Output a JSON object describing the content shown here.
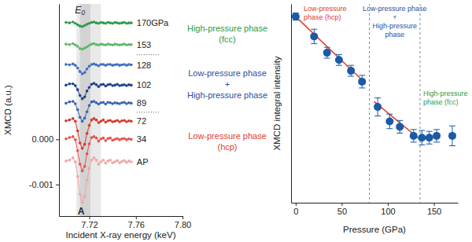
{
  "chart_data": [
    {
      "type": "line",
      "xlabel": "Incident X-ray energy (keV)",
      "ylabel": "XMCD (a.u.)",
      "x": [
        7.7,
        7.703,
        7.706,
        7.708,
        7.71,
        7.712,
        7.714,
        7.716,
        7.718,
        7.72,
        7.722,
        7.724,
        7.726,
        7.728,
        7.73,
        7.732,
        7.734,
        7.736,
        7.738,
        7.74,
        7.742,
        7.744,
        7.746,
        7.748,
        7.75,
        7.752,
        7.754,
        7.756
      ],
      "series": [
        {
          "name": "170GPa",
          "color": "#2e9a48",
          "values": [
            0.00259,
            0.00258,
            0.0026,
            0.00257,
            0.00254,
            0.00251,
            0.0025,
            0.00252,
            0.00255,
            0.00257,
            0.00259,
            0.0026,
            0.00258,
            0.00257,
            0.00259,
            0.00258,
            0.00257,
            0.00259,
            0.00258,
            0.00257,
            0.00259,
            0.00258,
            0.00257,
            0.00258,
            0.00259,
            0.00257,
            0.00258,
            0.00258
          ]
        },
        {
          "name": "153",
          "color": "#5cb868",
          "values": [
            0.00211,
            0.0021,
            0.00212,
            0.00209,
            0.00206,
            0.00201,
            0.002,
            0.00202,
            0.00205,
            0.00208,
            0.00211,
            0.00212,
            0.0021,
            0.00209,
            0.00211,
            0.0021,
            0.00209,
            0.00211,
            0.0021,
            0.00209,
            0.00211,
            0.0021,
            0.00209,
            0.0021,
            0.00211,
            0.00209,
            0.0021,
            0.0021
          ]
        },
        {
          "name": "128",
          "color": "#3f6fc0",
          "values": [
            0.00166,
            0.00165,
            0.00167,
            0.00164,
            0.00158,
            0.0015,
            0.00145,
            0.00148,
            0.00156,
            0.00162,
            0.00166,
            0.00167,
            0.00165,
            0.00163,
            0.00166,
            0.00166,
            0.00164,
            0.00166,
            0.00166,
            0.00164,
            0.00165,
            0.00166,
            0.00164,
            0.00165,
            0.00166,
            0.00164,
            0.00166,
            0.00165
          ]
        },
        {
          "name": "102",
          "color": "#1f3f8f",
          "values": [
            0.0012,
            0.00123,
            0.00123,
            0.00119,
            0.0011,
            0.00097,
            0.0009,
            0.00094,
            0.00107,
            0.00115,
            0.00122,
            0.00124,
            0.00121,
            0.00117,
            0.00121,
            0.00122,
            0.00118,
            0.00121,
            0.00122,
            0.00119,
            0.0012,
            0.00122,
            0.00119,
            0.0012,
            0.00121,
            0.00119,
            0.00121,
            0.0012
          ]
        },
        {
          "name": "89",
          "color": "#3b62b5",
          "values": [
            0.0008,
            0.00083,
            0.00084,
            0.00079,
            0.00066,
            0.00049,
            0.0004,
            0.00047,
            0.00061,
            0.00075,
            0.00083,
            0.00084,
            0.00081,
            0.00078,
            0.00081,
            0.00082,
            0.00078,
            0.00082,
            0.00081,
            0.00079,
            0.00081,
            0.0008,
            0.00079,
            0.00081,
            0.00082,
            0.00079,
            0.00081,
            0.0008
          ]
        },
        {
          "name": "72",
          "color": "#d9382e",
          "values": [
            0.00041,
            0.00043,
            0.00046,
            0.0004,
            0.00019,
            -8e-05,
            -0.0002,
            -0.00011,
            0.00013,
            0.00031,
            0.00043,
            0.00046,
            0.00043,
            0.00037,
            0.0004,
            0.00043,
            0.00038,
            0.00041,
            0.00042,
            0.00039,
            0.0004,
            0.00042,
            0.00039,
            0.00041,
            0.00042,
            0.00039,
            0.00041,
            0.0004
          ]
        },
        {
          "name": "34",
          "color": "#e8504a",
          "values": [
            1e-05,
            4e-05,
            6e-05,
            -1e-05,
            -0.00025,
            -0.00055,
            -0.0007,
            -0.0006,
            -0.00032,
            -0.0001,
            4e-05,
            6e-05,
            3e-05,
            -4e-05,
            1e-05,
            3e-05,
            -3e-05,
            2e-05,
            3e-05,
            -2e-05,
            0,
            2e-05,
            -1e-05,
            1e-05,
            2e-05,
            -1e-05,
            1e-05,
            0
          ]
        },
        {
          "name": "AP",
          "color": "#f2a4a4",
          "values": [
            -0.00048,
            -0.00046,
            -0.00041,
            -0.0005,
            -0.00082,
            -0.00122,
            -0.0014,
            -0.00127,
            -0.00091,
            -0.00064,
            -0.00046,
            -0.00041,
            -0.00046,
            -0.00055,
            -0.0005,
            -0.00046,
            -0.00053,
            -0.00048,
            -0.00046,
            -0.00052,
            -0.0005,
            -0.00047,
            -0.00052,
            -0.00049,
            -0.00047,
            -0.00051,
            -0.00048,
            -0.0005
          ]
        }
      ],
      "marker": "circle",
      "line_style": "solid",
      "xlim": [
        7.694,
        7.8
      ],
      "xticks": [
        7.72,
        7.76,
        {
          "value": 7.8,
          "label": "7.80"
        }
      ],
      "ylim": [
        -0.0017,
        0.003
      ],
      "yticks": [
        {
          "value": 0,
          "label": "0.000"
        },
        {
          "value": -0.001,
          "label": "-0.001"
        }
      ],
      "shaded_regions": [
        [
          7.709,
          7.73
        ],
        [
          7.712,
          7.721
        ]
      ],
      "energy_markers": [
        {
          "text": "E₀",
          "x": 7.712
        },
        {
          "text": "A",
          "x": 7.713
        }
      ],
      "annotations": [
        {
          "text": [
            "High-pressure phase",
            "(fcc)"
          ],
          "color": "#2e9a48"
        },
        {
          "text": [
            "Low-pressure phase",
            "+",
            "High-pressure phase"
          ],
          "color": "#2b4f9e"
        },
        {
          "text": [
            "Low-pressure phase",
            "(hcp)"
          ],
          "color": "#e03a2f"
        }
      ]
    },
    {
      "type": "scatter",
      "xlabel": "Pressure (GPa)",
      "ylabel": "XMCD integral intensity",
      "x": [
        0,
        20,
        34,
        47,
        60,
        72,
        89,
        102,
        113,
        128,
        137,
        145,
        153,
        170
      ],
      "values": [
        1.03,
        0.92,
        0.83,
        0.79,
        0.73,
        0.67,
        0.53,
        0.45,
        0.42,
        0.37,
        0.36,
        0.36,
        0.37,
        0.37
      ],
      "errors": [
        0.02,
        0.04,
        0.03,
        0.03,
        0.03,
        0.035,
        0.05,
        0.04,
        0.035,
        0.035,
        0.04,
        0.035,
        0.035,
        0.055
      ],
      "color": "#1a5aa6",
      "marker": "circle",
      "xlim": [
        -5,
        176
      ],
      "xticks": [
        0,
        50,
        100,
        150
      ],
      "ylim": [
        0,
        1.1
      ],
      "tick_labels": "x",
      "fit_lines": [
        {
          "x": [
            0,
            76
          ],
          "values": [
            1.03,
            0.66
          ],
          "color": "#e03a2f"
        },
        {
          "x": [
            85,
            135
          ],
          "values": [
            0.56,
            0.35
          ],
          "color": "#e03a2f"
        }
      ],
      "boundaries": [
        80,
        135
      ],
      "annotations": [
        {
          "text": [
            "Low-pressure",
            "phase (hcp)"
          ],
          "color": "#e03a2f"
        },
        {
          "text": [
            "Low-pressure phase",
            "+",
            "High-pressure",
            "phase"
          ],
          "color": "#2b4f9e"
        },
        {
          "text": [
            "High-pressure",
            "phase (fcc)"
          ],
          "color": "#2e9a48"
        }
      ]
    }
  ]
}
